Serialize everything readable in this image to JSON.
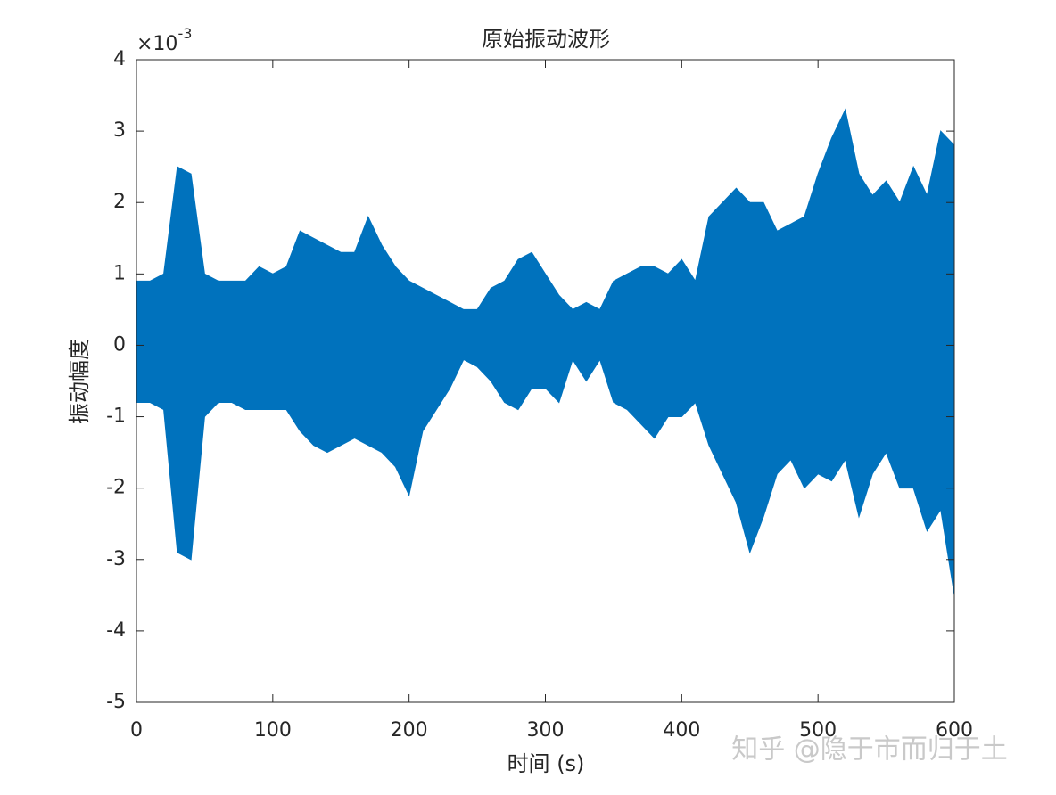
{
  "chart_data": {
    "type": "area",
    "title": "原始振动波形",
    "xlabel": "时间 (s)",
    "ylabel": "振动幅度",
    "y_exponent": {
      "base": "×10",
      "power": "-3"
    },
    "watermark": "知乎 @隐于市而归于土",
    "x": [
      0,
      10,
      20,
      30,
      40,
      50,
      60,
      70,
      80,
      90,
      100,
      110,
      120,
      130,
      140,
      150,
      160,
      170,
      180,
      190,
      200,
      210,
      220,
      230,
      240,
      250,
      260,
      270,
      280,
      290,
      300,
      310,
      320,
      330,
      340,
      350,
      360,
      370,
      380,
      390,
      400,
      410,
      420,
      430,
      440,
      450,
      460,
      470,
      480,
      490,
      500,
      510,
      520,
      530,
      540,
      550,
      560,
      570,
      580,
      590,
      600
    ],
    "series": [
      {
        "color": "#0072bd",
        "upper": [
          0.9,
          0.9,
          1.0,
          2.5,
          2.4,
          1.0,
          0.9,
          0.9,
          0.9,
          1.1,
          1.0,
          1.1,
          1.6,
          1.5,
          1.4,
          1.3,
          1.3,
          1.8,
          1.4,
          1.1,
          0.9,
          0.8,
          0.7,
          0.6,
          0.5,
          0.5,
          0.8,
          0.9,
          1.2,
          1.3,
          1.0,
          0.7,
          0.5,
          0.6,
          0.5,
          0.9,
          1.0,
          1.1,
          1.1,
          1.0,
          1.2,
          0.9,
          1.8,
          2.0,
          2.2,
          2.0,
          2.0,
          1.6,
          1.7,
          1.8,
          2.4,
          2.9,
          3.3,
          2.4,
          2.1,
          2.3,
          2.0,
          2.5,
          2.1,
          3.0,
          2.8
        ],
        "lower": [
          -0.8,
          -0.8,
          -0.9,
          -2.9,
          -3.0,
          -1.0,
          -0.8,
          -0.8,
          -0.9,
          -0.9,
          -0.9,
          -0.9,
          -1.2,
          -1.4,
          -1.5,
          -1.4,
          -1.3,
          -1.4,
          -1.5,
          -1.7,
          -2.1,
          -1.2,
          -0.9,
          -0.6,
          -0.2,
          -0.3,
          -0.5,
          -0.8,
          -0.9,
          -0.6,
          -0.6,
          -0.8,
          -0.2,
          -0.5,
          -0.2,
          -0.8,
          -0.9,
          -1.1,
          -1.3,
          -1.0,
          -1.0,
          -0.8,
          -1.4,
          -1.8,
          -2.2,
          -2.9,
          -2.4,
          -1.8,
          -1.6,
          -2.0,
          -1.8,
          -1.9,
          -1.6,
          -2.4,
          -1.8,
          -1.5,
          -2.0,
          -2.0,
          -2.6,
          -2.3,
          -3.5
        ]
      }
    ],
    "xlim": [
      0,
      600
    ],
    "xticks": [
      0,
      100,
      200,
      300,
      400,
      500,
      600
    ],
    "ylim": [
      -5,
      4
    ],
    "yticks": [
      -5,
      -4,
      -3,
      -2,
      -1,
      0,
      1,
      2,
      3,
      4
    ]
  }
}
